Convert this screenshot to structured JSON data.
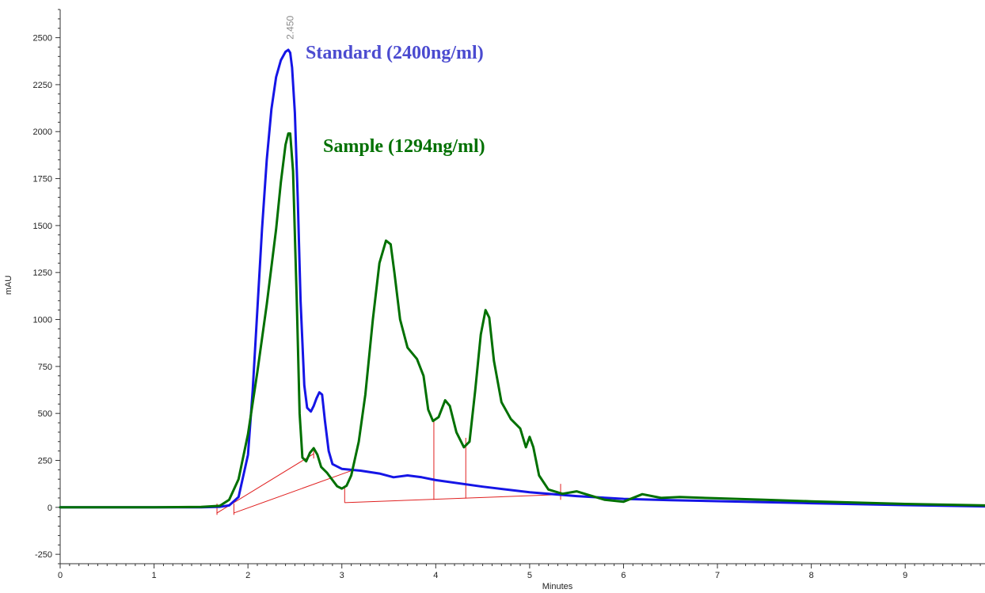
{
  "chart_data": {
    "type": "line",
    "title": "",
    "xlabel": "Minutes",
    "ylabel": "mAU",
    "xlim": [
      0,
      9.85
    ],
    "ylim": [
      -300,
      2650
    ],
    "x_ticks": [
      0,
      1,
      2,
      3,
      4,
      5,
      6,
      7,
      8,
      9
    ],
    "y_ticks": [
      -250,
      0,
      250,
      500,
      750,
      1000,
      1250,
      1500,
      1750,
      2000,
      2250,
      2500
    ],
    "grid": false,
    "legend": "top-center",
    "peak_label": {
      "text": "2.450",
      "x": 2.45,
      "y": 2440
    },
    "series": [
      {
        "name": "Standard (2400ng/ml)",
        "color": "#1515e6",
        "x": [
          0,
          1,
          1.5,
          1.7,
          1.8,
          1.9,
          2.0,
          2.05,
          2.1,
          2.15,
          2.2,
          2.25,
          2.3,
          2.35,
          2.4,
          2.43,
          2.45,
          2.47,
          2.5,
          2.53,
          2.56,
          2.6,
          2.63,
          2.67,
          2.7,
          2.73,
          2.76,
          2.79,
          2.82,
          2.86,
          2.9,
          3.0,
          3.2,
          3.4,
          3.55,
          3.7,
          3.85,
          4.0,
          4.5,
          5.0,
          5.5,
          6.0,
          6.5,
          7.0,
          8.0,
          9.0,
          9.85
        ],
        "values": [
          0,
          0,
          0,
          3,
          10,
          55,
          280,
          620,
          1050,
          1480,
          1850,
          2120,
          2290,
          2380,
          2425,
          2435,
          2420,
          2340,
          2100,
          1650,
          1100,
          650,
          530,
          510,
          540,
          580,
          612,
          600,
          460,
          300,
          230,
          205,
          195,
          180,
          160,
          170,
          160,
          145,
          110,
          80,
          60,
          45,
          38,
          33,
          22,
          12,
          5
        ]
      },
      {
        "name": "Sample (1294ng/ml)",
        "color": "#007000",
        "x": [
          0,
          1,
          1.5,
          1.7,
          1.8,
          1.9,
          2.0,
          2.1,
          2.2,
          2.3,
          2.35,
          2.4,
          2.43,
          2.45,
          2.48,
          2.52,
          2.55,
          2.58,
          2.62,
          2.66,
          2.7,
          2.74,
          2.78,
          2.84,
          2.9,
          2.95,
          3.0,
          3.05,
          3.1,
          3.18,
          3.25,
          3.33,
          3.4,
          3.47,
          3.52,
          3.56,
          3.62,
          3.7,
          3.8,
          3.87,
          3.92,
          3.97,
          4.03,
          4.1,
          4.15,
          4.22,
          4.3,
          4.36,
          4.42,
          4.48,
          4.53,
          4.57,
          4.62,
          4.7,
          4.8,
          4.9,
          4.96,
          5.0,
          5.04,
          5.1,
          5.2,
          5.35,
          5.5,
          5.6,
          5.8,
          6.0,
          6.2,
          6.4,
          6.6,
          7.0,
          7.5,
          8.0,
          8.5,
          9.0,
          9.85
        ],
        "values": [
          0,
          0,
          2,
          8,
          40,
          150,
          390,
          720,
          1080,
          1480,
          1730,
          1930,
          1990,
          1990,
          1790,
          1100,
          500,
          265,
          245,
          290,
          315,
          280,
          215,
          185,
          145,
          112,
          100,
          115,
          170,
          350,
          600,
          1000,
          1300,
          1420,
          1400,
          1250,
          1000,
          850,
          790,
          700,
          520,
          460,
          480,
          570,
          540,
          400,
          320,
          350,
          620,
          920,
          1050,
          1010,
          780,
          560,
          470,
          420,
          320,
          375,
          320,
          170,
          95,
          72,
          85,
          70,
          40,
          30,
          70,
          50,
          55,
          48,
          40,
          32,
          25,
          18,
          10
        ]
      }
    ],
    "integration_baselines": [
      {
        "x": [
          1.67,
          2.7
        ],
        "y": [
          -30,
          285
        ]
      },
      {
        "x": [
          1.85,
          3.1
        ],
        "y": [
          -30,
          195
        ]
      },
      {
        "x": [
          3.03,
          5.33
        ],
        "y": [
          25,
          68
        ]
      }
    ],
    "integration_markers": [
      {
        "x": 1.67,
        "y1": -40,
        "y2": 20
      },
      {
        "x": 1.85,
        "y1": -40,
        "y2": 20
      },
      {
        "x": 2.7,
        "y1": 260,
        "y2": 320
      },
      {
        "x": 3.03,
        "y1": 25,
        "y2": 110
      },
      {
        "x": 3.98,
        "y1": 40,
        "y2": 460
      },
      {
        "x": 4.32,
        "y1": 47,
        "y2": 370
      },
      {
        "x": 5.33,
        "y1": 40,
        "y2": 125
      }
    ]
  }
}
